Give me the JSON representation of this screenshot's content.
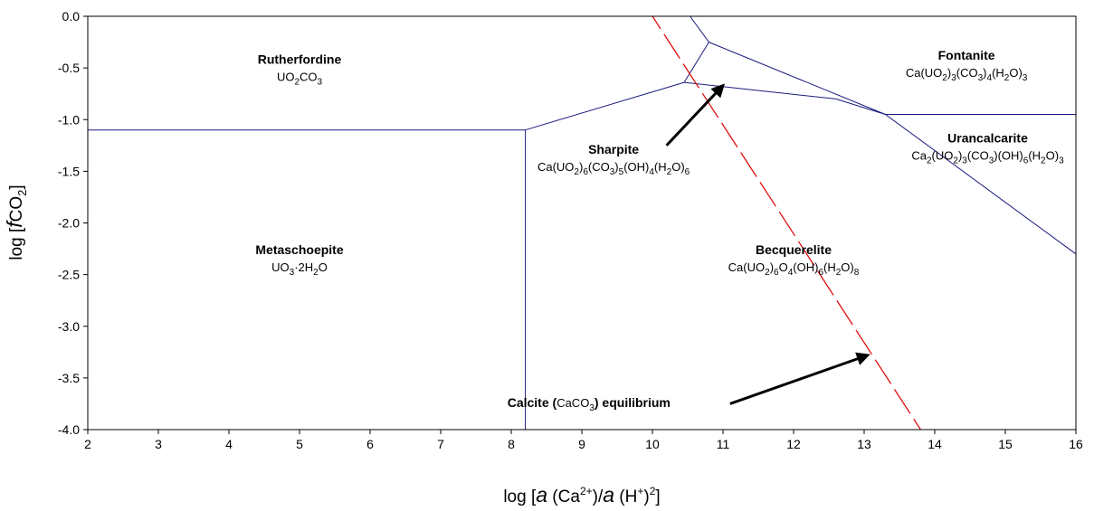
{
  "chart_data": {
    "type": "line",
    "title": "",
    "xlabel": "log [a (Ca2+)/a (H+)2]",
    "xlabel_parts": {
      "prefix": "log [",
      "a1": "a",
      "mid1": " (Ca",
      "sup1": "2+",
      "mid2": ")/",
      "a2": "a",
      "mid3": " (H",
      "sup2": "+",
      "mid4": ")",
      "sup3": "2",
      "suffix": "]"
    },
    "ylabel": "log [fCO2]",
    "ylabel_parts": {
      "prefix": "log [",
      "f": "f",
      "co": "CO",
      "sub": "2",
      "suffix": "]"
    },
    "xlim": [
      2,
      16
    ],
    "ylim": [
      -4.0,
      0.0
    ],
    "xticks": [
      "2",
      "3",
      "4",
      "5",
      "6",
      "7",
      "8",
      "9",
      "10",
      "11",
      "12",
      "13",
      "14",
      "15",
      "16"
    ],
    "yticks": [
      "0.0",
      "-0.5",
      "-1.0",
      "-1.5",
      "-2.0",
      "-2.5",
      "-3.0",
      "-3.5",
      "-4.0"
    ],
    "grid": false,
    "colors": {
      "boundary": "#1a1a80",
      "calcite": "#e01010",
      "arrow": "#000000"
    },
    "series": [
      {
        "points": [
          [
            2.0,
            -1.1
          ],
          [
            8.2,
            -1.1
          ]
        ]
      },
      {
        "points": [
          [
            8.2,
            -1.1
          ],
          [
            8.2,
            -4.0
          ]
        ]
      },
      {
        "points": [
          [
            8.2,
            -1.1
          ],
          [
            10.45,
            -0.64
          ]
        ]
      },
      {
        "points": [
          [
            10.45,
            -0.64
          ],
          [
            10.8,
            -0.25
          ]
        ]
      },
      {
        "points": [
          [
            10.8,
            -0.25
          ],
          [
            10.0,
            0.5
          ]
        ]
      },
      {
        "points": [
          [
            10.8,
            -0.25
          ],
          [
            13.3,
            -0.95
          ]
        ]
      },
      {
        "points": [
          [
            10.45,
            -0.64
          ],
          [
            12.6,
            -0.8
          ]
        ]
      },
      {
        "points": [
          [
            12.6,
            -0.8
          ],
          [
            13.3,
            -0.95
          ]
        ]
      },
      {
        "points": [
          [
            13.3,
            -0.95
          ],
          [
            16.0,
            -0.95
          ]
        ]
      },
      {
        "points": [
          [
            13.3,
            -0.95
          ],
          [
            16.0,
            -2.3
          ]
        ]
      },
      {
        "points": [
          [
            9.62,
            0.4
          ],
          [
            13.8,
            -4.0
          ]
        ]
      }
    ],
    "regions": [
      {
        "name": "Rutherfordine",
        "formula_parts": [
          "UO",
          "2",
          "CO",
          "3"
        ],
        "x": 5.0,
        "y": -0.46
      },
      {
        "name": "Metaschoepite",
        "formula_parts": [
          "UO",
          "3",
          "·2H",
          "2",
          "O"
        ],
        "x": 5.0,
        "y": -2.3
      },
      {
        "name": "Becquerelite",
        "formula_parts": [
          "Ca(UO",
          "2",
          ")",
          "6",
          "O",
          "4",
          "(OH)",
          "6",
          "(H",
          "2",
          "O)",
          "8"
        ],
        "x": 12.0,
        "y": -2.3
      },
      {
        "name": "Fontanite",
        "formula_parts": [
          "Ca(UO",
          "2",
          ")",
          "3",
          "(CO",
          "3",
          ")",
          "4",
          "(H",
          "2",
          "O)",
          "3"
        ],
        "x": 14.45,
        "y": -0.42
      },
      {
        "name": "Urancalcarite",
        "formula_parts": [
          "Ca",
          "2",
          "(UO",
          "2",
          ")",
          "3",
          "(CO",
          "3",
          ")(OH)",
          "6",
          "(H",
          "2",
          "O)",
          "3"
        ],
        "x": 14.75,
        "y": -1.22
      },
      {
        "name": "Sharpite",
        "formula_parts": [
          "Ca(UO",
          "2",
          ")",
          "6",
          "(CO",
          "3",
          ")",
          "5",
          "(OH)",
          "4",
          "(H",
          "2",
          "O)",
          "6"
        ],
        "x": 9.45,
        "y": -1.33
      }
    ],
    "annotations": [
      {
        "label_parts": [
          "Calcite (",
          "CaCO",
          "3",
          ") equilibrium"
        ],
        "x": 9.1,
        "y": -3.78,
        "arrow_from": [
          11.1,
          -3.75
        ],
        "arrow_to": [
          13.05,
          -3.28
        ]
      },
      {
        "arrow_from": [
          10.2,
          -1.25
        ],
        "arrow_to": [
          11.0,
          -0.67
        ]
      }
    ]
  }
}
